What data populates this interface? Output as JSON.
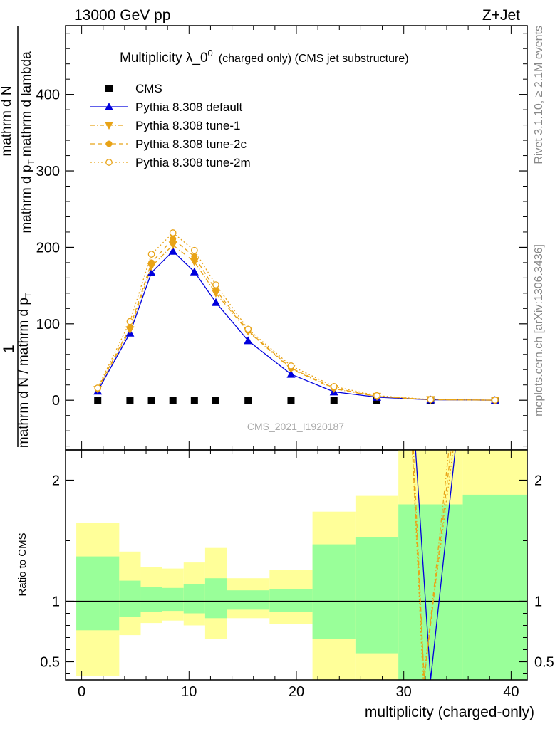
{
  "header": {
    "left_label": "13000 GeV pp",
    "right_label": "Z+Jet",
    "side_label_top": "Rivet 3.1.10, ≥ 2.1M events",
    "side_label_bottom": "mcplots.cern.ch [arXiv:1306.3436]",
    "watermark": "CMS_2021_I1920187"
  },
  "colors": {
    "cms": "#000000",
    "default": "#0000dd",
    "tune": "#e8a317",
    "band_inner": "#99ff99",
    "band_outer": "#ffff99"
  },
  "chart_data": [
    {
      "type": "scatter",
      "title_main": "Multiplicity λ_0",
      "title_sup": "0",
      "title_small": "(charged only) (CMS jet substructure)",
      "ylabel_parts": [
        "1",
        "mathrm d N / mathrm d p",
        "T",
        "mathrm d N",
        "mathrm d p",
        "T",
        "mathrm d lambda"
      ],
      "ylabel_text": "1 / (mathrm d N / mathrm d p_T) · mathrm d²N / (mathrm d p_T mathrm d lambda)",
      "xlim": [
        -1.5,
        41.5
      ],
      "ylim": [
        -65,
        490
      ],
      "yticks": [
        0,
        100,
        200,
        300,
        400
      ],
      "legend_position": "top-left",
      "series": [
        {
          "name": "CMS",
          "marker": "square",
          "line": "none",
          "x": [
            1.5,
            4.5,
            6.5,
            8.5,
            10.5,
            12.5,
            15.5,
            19.5,
            23.5,
            27.5,
            32.5,
            38.5
          ],
          "y": [
            0,
            0,
            0,
            0,
            0,
            0,
            0,
            0,
            0,
            0,
            0,
            0
          ]
        },
        {
          "name": "Pythia 8.308 default",
          "marker": "triangle-up",
          "line": "solid",
          "x": [
            1.5,
            4.5,
            6.5,
            8.5,
            10.5,
            12.5,
            15.5,
            19.5,
            23.5,
            27.5,
            32.5,
            38.5
          ],
          "y": [
            12,
            88,
            167,
            195,
            168,
            128,
            78,
            34,
            11,
            4,
            0.6,
            0.1
          ]
        },
        {
          "name": "Pythia 8.308 tune-1",
          "marker": "triangle-down",
          "line": "dashdot",
          "x": [
            1.5,
            4.5,
            6.5,
            8.5,
            10.5,
            12.5,
            15.5,
            19.5,
            23.5,
            27.5,
            32.5,
            38.5
          ],
          "y": [
            14,
            92,
            175,
            203,
            181,
            140,
            90,
            41,
            15,
            5,
            0.8,
            0.1
          ]
        },
        {
          "name": "Pythia 8.308 tune-2c",
          "marker": "circle",
          "line": "dashed",
          "x": [
            1.5,
            4.5,
            6.5,
            8.5,
            10.5,
            12.5,
            15.5,
            19.5,
            23.5,
            27.5,
            32.5,
            38.5
          ],
          "y": [
            15,
            95,
            180,
            211,
            188,
            144,
            91,
            42,
            16,
            5,
            0.8,
            0.1
          ]
        },
        {
          "name": "Pythia 8.308 tune-2m",
          "marker": "circle-open",
          "line": "dotted",
          "x": [
            1.5,
            4.5,
            6.5,
            8.5,
            10.5,
            12.5,
            15.5,
            19.5,
            23.5,
            27.5,
            32.5,
            38.5
          ],
          "y": [
            16,
            103,
            191,
            219,
            196,
            151,
            93,
            45,
            18,
            6,
            0.9,
            0.1
          ]
        }
      ]
    },
    {
      "type": "line",
      "ylabel": "Ratio to CMS",
      "xlabel": "multiplicity (charged-only)",
      "xlim": [
        -1.5,
        41.5
      ],
      "ylim": [
        0.35,
        2.25
      ],
      "yticks": [
        0.5,
        1,
        2
      ],
      "xticks": [
        0,
        10,
        20,
        30,
        40
      ],
      "reference_line": 1,
      "bands": [
        {
          "x0": -0.5,
          "x1": 3.5,
          "outer": [
            0.38,
            1.65
          ],
          "inner": [
            0.76,
            1.37
          ]
        },
        {
          "x0": 3.5,
          "x1": 5.5,
          "outer": [
            0.72,
            1.41
          ],
          "inner": [
            0.87,
            1.17
          ]
        },
        {
          "x0": 5.5,
          "x1": 7.5,
          "outer": [
            0.82,
            1.28
          ],
          "inner": [
            0.91,
            1.12
          ]
        },
        {
          "x0": 7.5,
          "x1": 9.5,
          "outer": [
            0.84,
            1.27
          ],
          "inner": [
            0.92,
            1.11
          ]
        },
        {
          "x0": 9.5,
          "x1": 11.5,
          "outer": [
            0.8,
            1.32
          ],
          "inner": [
            0.9,
            1.14
          ]
        },
        {
          "x0": 11.5,
          "x1": 13.5,
          "outer": [
            0.69,
            1.44
          ],
          "inner": [
            0.86,
            1.19
          ]
        },
        {
          "x0": 13.5,
          "x1": 17.5,
          "outer": [
            0.86,
            1.19
          ],
          "inner": [
            0.93,
            1.09
          ]
        },
        {
          "x0": 17.5,
          "x1": 21.5,
          "outer": [
            0.81,
            1.26
          ],
          "inner": [
            0.91,
            1.1
          ]
        },
        {
          "x0": 21.5,
          "x1": 25.5,
          "outer": [
            0.35,
            1.74
          ],
          "inner": [
            0.69,
            1.47
          ]
        },
        {
          "x0": 25.5,
          "x1": 29.5,
          "outer": [
            0.35,
            1.87
          ],
          "inner": [
            0.57,
            1.53
          ]
        },
        {
          "x0": 29.5,
          "x1": 35.5,
          "outer": [
            0.35,
            2.25
          ],
          "inner": [
            0.35,
            1.8
          ]
        },
        {
          "x0": 35.5,
          "x1": 41.5,
          "outer": [
            0.35,
            2.25
          ],
          "inner": [
            0.35,
            1.88
          ]
        }
      ],
      "series": [
        {
          "name": "Pythia 8.308 default",
          "line": "solid",
          "x": [
            31.1,
            32.5,
            34.8
          ],
          "y": [
            2.25,
            0.35,
            2.25
          ]
        },
        {
          "name": "Pythia 8.308 tune-1",
          "line": "dashdot",
          "x": [
            30.9,
            31.9,
            34.2
          ],
          "y": [
            2.25,
            0.35,
            2.25
          ]
        },
        {
          "name": "Pythia 8.308 tune-2c",
          "line": "dashed",
          "x": [
            30.8,
            31.9,
            34.4
          ],
          "y": [
            2.25,
            0.35,
            2.25
          ]
        },
        {
          "name": "Pythia 8.308 tune-2m",
          "line": "dotted",
          "x": [
            30.8,
            31.8,
            34.6
          ],
          "y": [
            2.25,
            0.35,
            2.25
          ]
        }
      ]
    }
  ]
}
